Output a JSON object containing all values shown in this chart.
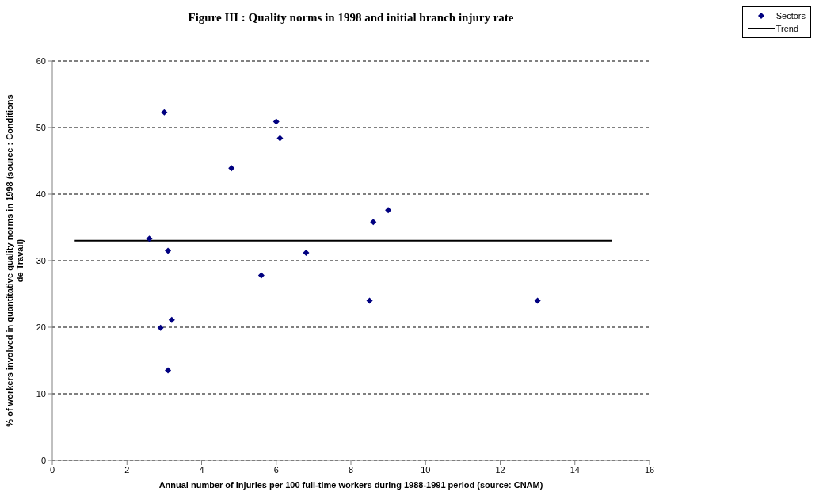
{
  "chart_data": {
    "type": "scatter",
    "title": "Figure III : Quality norms in 1998 and initial branch injury rate",
    "xlabel": "Annual number of injuries per 100 full-time workers during 1988-1991 period (source: CNAM)",
    "ylabel": "% of workers involved in quantitative quality norms in 1998 (source : Conditions de Travail)",
    "xlim": [
      0,
      16
    ],
    "xticks": [
      0,
      2,
      4,
      6,
      8,
      10,
      12,
      14,
      16
    ],
    "ylim": [
      0,
      60
    ],
    "yticks": [
      0,
      10,
      20,
      30,
      40,
      50,
      60
    ],
    "grid": "y",
    "legend": "top right",
    "series": [
      {
        "name": "Sectors",
        "marker": "diamond",
        "color": "#000080",
        "x": [
          3.0,
          6.0,
          6.1,
          4.8,
          9.0,
          8.6,
          2.6,
          3.1,
          6.8,
          5.6,
          8.5,
          13.0,
          3.2,
          2.9,
          3.1
        ],
        "values": [
          52.3,
          50.9,
          48.4,
          43.9,
          37.6,
          35.8,
          33.3,
          31.5,
          31.2,
          27.8,
          24.0,
          24.0,
          21.1,
          19.9,
          13.5
        ]
      },
      {
        "name": "Trend",
        "type": "line",
        "marker": "none",
        "color": "#000000",
        "x": [
          0.6,
          15.0
        ],
        "values": [
          33.0,
          33.0
        ]
      }
    ]
  }
}
